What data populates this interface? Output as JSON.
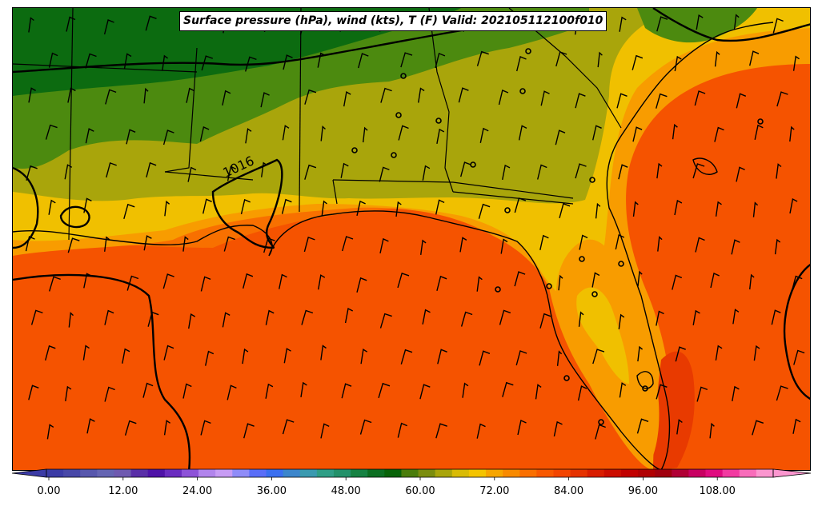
{
  "title": "Surface pressure (hPa), wind (kts), T (F) Valid: 202105112100f010",
  "isobar_label": "1016",
  "colorbar": {
    "ticks": [
      "0.00",
      "12.00",
      "24.00",
      "36.00",
      "48.00",
      "60.00",
      "72.00",
      "84.00",
      "96.00",
      "108.00"
    ],
    "colors": [
      "#3b3ba6",
      "#4848a8",
      "#5757ad",
      "#6565b3",
      "#6f5ab0",
      "#5a2fa8",
      "#4f13a8",
      "#6a2cc0",
      "#8d52d8",
      "#b184ec",
      "#c79cf4",
      "#8f8cf8",
      "#5a6ef8",
      "#3a6ff0",
      "#3c86cc",
      "#3a9ab0",
      "#2f9e86",
      "#23916a",
      "#168243",
      "#0c6f22",
      "#086309",
      "#4a7d0b",
      "#7b8d0e",
      "#a9a50b",
      "#d9bb06",
      "#f4c400",
      "#f6a500",
      "#f88a00",
      "#fa6f00",
      "#f85800",
      "#f34500",
      "#e63200",
      "#d91d00",
      "#cc0d00",
      "#c10000",
      "#b00002",
      "#a0000e",
      "#b00035",
      "#c80062",
      "#e00b80",
      "#f23aa1",
      "#f86cba",
      "#fb96cf"
    ],
    "range": [
      -6,
      120
    ]
  },
  "legend": {
    "field_colors": {
      "green_dark": "#0c6b10",
      "green": "#4c8a0f",
      "olive": "#a9a50b",
      "yellow": "#f0c000",
      "orange_light": "#f89c00",
      "orange": "#f87000",
      "orange_dark": "#f55300",
      "red_orange": "#e83a00"
    }
  }
}
